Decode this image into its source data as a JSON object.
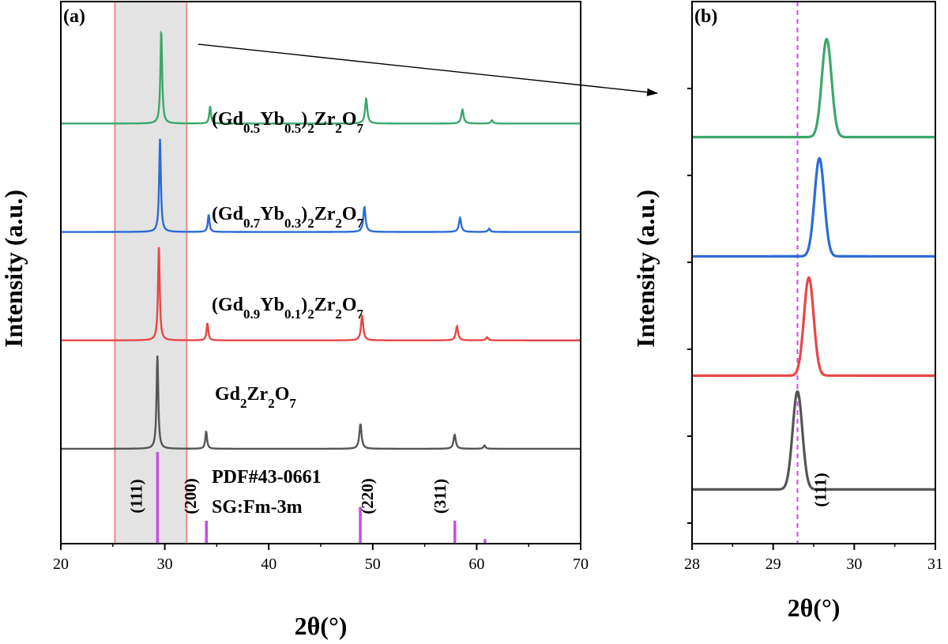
{
  "chart_data": [
    {
      "panel": "(a)",
      "type": "line",
      "xlabel": "2θ(°)",
      "ylabel": "Intensity (a.u.)",
      "xlim": [
        20,
        70
      ],
      "xticks": [
        "20",
        "30",
        "40",
        "50",
        "60",
        "70"
      ],
      "highlight_range": [
        25.2,
        32.1
      ],
      "series": [
        {
          "name": "(Gd0.5Yb0.5)2Zr2O7",
          "color": "#3aa86b",
          "base": 0.775,
          "background": [
            [
              20,
              0
            ],
            [
              70,
              0
            ]
          ],
          "peaks": [
            [
              29.66,
              0.86,
              0.1
            ],
            [
              34.36,
              0.16,
              0.1
            ],
            [
              49.37,
              0.23,
              0.13
            ],
            [
              58.63,
              0.13,
              0.13
            ],
            [
              61.46,
              0.03,
              0.12
            ]
          ]
        },
        {
          "name": "(Gd0.7Yb0.3)2Zr2O7",
          "color": "#2a6bd6",
          "base": 0.575,
          "background": [
            [
              20,
              0
            ],
            [
              70,
              0
            ]
          ],
          "peaks": [
            [
              29.54,
              0.86,
              0.1
            ],
            [
              34.22,
              0.16,
              0.1
            ],
            [
              49.2,
              0.23,
              0.13
            ],
            [
              58.4,
              0.13,
              0.13
            ],
            [
              61.2,
              0.03,
              0.12
            ]
          ]
        },
        {
          "name": "(Gd0.9Yb0.1)2Zr2O7",
          "color": "#e84646",
          "base": 0.375,
          "background": [
            [
              20,
              0
            ],
            [
              70,
              0
            ]
          ],
          "peaks": [
            [
              29.43,
              0.86,
              0.1
            ],
            [
              34.1,
              0.16,
              0.1
            ],
            [
              48.98,
              0.23,
              0.13
            ],
            [
              58.1,
              0.13,
              0.13
            ],
            [
              61.0,
              0.03,
              0.12
            ]
          ]
        },
        {
          "name": "Gd2Zr2O7",
          "color": "#555555",
          "base": 0.175,
          "background": [
            [
              20,
              0
            ],
            [
              70,
              0
            ]
          ],
          "peaks": [
            [
              29.29,
              0.86,
              0.1
            ],
            [
              33.98,
              0.16,
              0.1
            ],
            [
              48.82,
              0.23,
              0.13
            ],
            [
              57.88,
              0.13,
              0.13
            ],
            [
              60.75,
              0.03,
              0.12
            ]
          ]
        }
      ],
      "reference": {
        "name": "PDF#43-0661",
        "space_group": "SG:Fm-3m",
        "color": "#c44ee6",
        "lines": [
          [
            29.3,
            1.0
          ],
          [
            34.0,
            0.25
          ],
          [
            48.8,
            0.4
          ],
          [
            57.9,
            0.25
          ],
          [
            60.8,
            0.05
          ]
        ]
      },
      "hkl_labels": [
        {
          "text": "(111)",
          "x": 27.8
        },
        {
          "text": "(200)",
          "x": 33.0
        },
        {
          "text": "(220)",
          "x": 50.0
        },
        {
          "text": "(311)",
          "x": 57.0
        }
      ],
      "labels": [
        {
          "text": "(Gd0.5Yb0.5)2Zr2O7",
          "parts": [
            [
              "(Gd",
              "n"
            ],
            [
              "0.5",
              "sub"
            ],
            [
              "Yb",
              "n"
            ],
            [
              "0.5",
              "sub"
            ],
            [
              ")",
              "n"
            ],
            [
              "2",
              "sub"
            ],
            [
              "Zr",
              "n"
            ],
            [
              "2",
              "sub"
            ],
            [
              "O",
              "n"
            ],
            [
              "7",
              "sub"
            ]
          ]
        },
        {
          "text": "(Gd0.7Yb0.3)2Zr2O7",
          "parts": [
            [
              "(Gd",
              "n"
            ],
            [
              "0.7",
              "sub"
            ],
            [
              "Yb",
              "n"
            ],
            [
              "0.3",
              "sub"
            ],
            [
              ")",
              "n"
            ],
            [
              "2",
              "sub"
            ],
            [
              "Zr",
              "n"
            ],
            [
              "2",
              "sub"
            ],
            [
              "O",
              "n"
            ],
            [
              "7",
              "sub"
            ]
          ]
        },
        {
          "text": "(Gd0.9Yb0.1)2Zr2O7",
          "parts": [
            [
              "(Gd",
              "n"
            ],
            [
              "0.9",
              "sub"
            ],
            [
              "Yb",
              "n"
            ],
            [
              "0.1",
              "sub"
            ],
            [
              ")",
              "n"
            ],
            [
              "2",
              "sub"
            ],
            [
              "Zr",
              "n"
            ],
            [
              "2",
              "sub"
            ],
            [
              "O",
              "n"
            ],
            [
              "7",
              "sub"
            ]
          ]
        },
        {
          "text": "Gd2Zr2O7",
          "parts": [
            [
              "Gd",
              "n"
            ],
            [
              "2",
              "sub"
            ],
            [
              "Zr",
              "n"
            ],
            [
              "2",
              "sub"
            ],
            [
              "O",
              "n"
            ],
            [
              "7",
              "sub"
            ]
          ]
        }
      ]
    },
    {
      "panel": "(b)",
      "type": "line",
      "xlabel": "2θ(°)",
      "ylabel": "Intensity (a.u.)",
      "xlim": [
        28,
        31
      ],
      "xticks": [
        "28",
        "29",
        "30",
        "31"
      ],
      "reference_line": 29.3,
      "reference_color": "#c44ee6",
      "hkl_label": "(111)",
      "series": [
        {
          "name": "(Gd0.5Yb0.5)2Zr2O7",
          "color": "#3aa86b",
          "base": 0.75,
          "center": 29.66,
          "height": 0.18,
          "width": 0.06
        },
        {
          "name": "(Gd0.7Yb0.3)2Zr2O7",
          "color": "#2a6bd6",
          "base": 0.53,
          "center": 29.57,
          "height": 0.18,
          "width": 0.06
        },
        {
          "name": "(Gd0.9Yb0.1)2Zr2O7",
          "color": "#e84646",
          "base": 0.31,
          "center": 29.44,
          "height": 0.18,
          "width": 0.06
        },
        {
          "name": "Gd2Zr2O7",
          "color": "#555555",
          "base": 0.1,
          "center": 29.3,
          "height": 0.18,
          "width": 0.06
        }
      ]
    }
  ]
}
